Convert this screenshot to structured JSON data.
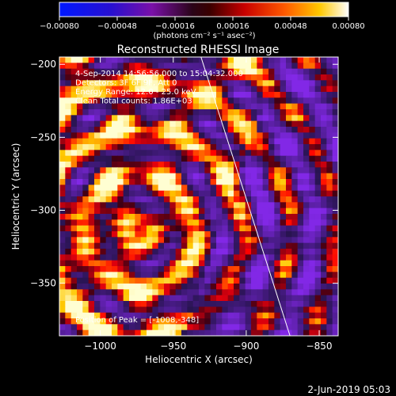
{
  "chart_data": {
    "type": "heatmap",
    "title": "Reconstructed RHESSI Image",
    "xlabel": "Heliocentric X (arcsec)",
    "ylabel": "Heliocentric Y (arcsec)",
    "xlim": [
      -1028,
      -837
    ],
    "ylim": [
      -386,
      -195
    ],
    "x_ticks": [
      -1000,
      -950,
      -900,
      -850
    ],
    "x_tick_labels": [
      "−1000",
      "−950",
      "−900",
      "−850"
    ],
    "y_ticks": [
      -200,
      -250,
      -300,
      -350
    ],
    "y_tick_labels": [
      "−200",
      "−250",
      "−300",
      "−350"
    ],
    "colorbar": {
      "min": -0.0008,
      "max": 0.0008,
      "ticks": [
        -0.0008,
        -0.00048,
        -0.00016,
        0.00016,
        0.00048,
        0.0008
      ],
      "tick_labels": [
        "−0.00080",
        "−0.00048",
        "−0.00016",
        "0.00016",
        "0.00048",
        "0.00080"
      ],
      "unit_label": "(photons cm⁻² s⁻¹ asec⁻²)"
    },
    "limb_line": {
      "x": [
        -931,
        -870
      ],
      "y": [
        -195,
        -386
      ]
    },
    "annotations": [
      "4-Sep-2014 14:56:56.000 to 15:04:32.000",
      "Detectors: 3F 6F 9F, Att 0",
      "Energy Range: 12.0 - 25.0 keV",
      "Clean     Total counts: 1.86E+03"
    ],
    "peak_label": "Position of Peak = [-1008,-348]",
    "peak": [
      -1008,
      -348
    ],
    "grid": false
  },
  "footer": {
    "date": "2-Jun-2019 05:03"
  }
}
